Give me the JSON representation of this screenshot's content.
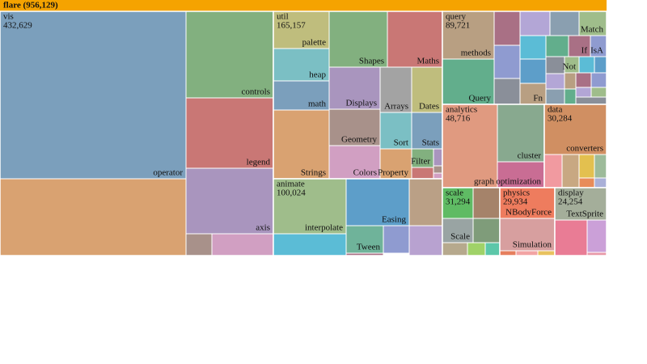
{
  "chart_data": {
    "type": "treemap",
    "title": "flare (956,129)",
    "value": 956129,
    "color": "#f5a300",
    "children": [
      {
        "name": "vis",
        "value": 432629,
        "value_label": "432,629",
        "children": [
          {
            "name": "operator",
            "value": 200900,
            "color": "#7b9fbc"
          },
          {
            "name": null,
            "value": 92200,
            "color": "#d9a271"
          },
          {
            "name": "controls",
            "value": 48800,
            "color": "#82b07f"
          },
          {
            "name": "legend",
            "value": 39700,
            "color": "#c97775"
          },
          {
            "name": "axis",
            "value": 36900,
            "color": "#a995be"
          },
          {
            "name": null,
            "value": 3600,
            "color": "#a8918a"
          },
          {
            "name": null,
            "value": 8700,
            "color": "#d19fc2"
          }
        ]
      },
      {
        "name": "util",
        "value": 165157,
        "value_label": "165,157",
        "children": [
          {
            "name": "palette",
            "value": 13400,
            "color": "#bfbd7d"
          },
          {
            "name": "heap",
            "value": 11600,
            "color": "#7bbfc4"
          },
          {
            "name": "math",
            "value": 10500,
            "color": "#7b9fbc"
          },
          {
            "name": "Strings",
            "value": 24800,
            "color": "#d9a271"
          },
          {
            "name": "Shapes",
            "value": 21000,
            "color": "#82b07f"
          },
          {
            "name": "Maths",
            "value": 19800,
            "color": "#c97775"
          },
          {
            "name": "Displays",
            "value": 13800,
            "color": "#a995be"
          },
          {
            "name": "Geometry",
            "value": 12000,
            "color": "#a8918a"
          },
          {
            "name": "Colors",
            "value": 10900,
            "color": "#d19fc2"
          },
          {
            "name": "Arrays",
            "value": 9200,
            "color": "#a3a3a3"
          },
          {
            "name": "Dates",
            "value": 9000,
            "color": "#bfbd7d"
          },
          {
            "name": "Sort",
            "value": 7400,
            "color": "#7bbfc4"
          },
          {
            "name": "Stats",
            "value": 7200,
            "color": "#7b9fbc"
          },
          {
            "name": "Property",
            "value": 6100,
            "color": "#d9a271"
          },
          {
            "name": "Filter",
            "value": 2600,
            "color": "#82b07f"
          },
          {
            "name": null,
            "value": 1000,
            "color": "#a995be"
          },
          {
            "name": null,
            "value": 1600,
            "color": "#c97775"
          },
          {
            "name": null,
            "value": 400,
            "color": "#a8918a"
          },
          {
            "name": null,
            "value": 300,
            "color": "#d19fc2"
          }
        ]
      },
      {
        "name": "animate",
        "value": 100024,
        "value_label": "100,024",
        "children": [
          {
            "name": "interpolate",
            "value": 25800,
            "color": "#9fbd8b"
          },
          {
            "name": null,
            "value": 10300,
            "color": "#5bbcd6"
          },
          {
            "name": "Easing",
            "value": 19100,
            "color": "#5d9ec9"
          },
          {
            "name": null,
            "value": 10000,
            "color": "#baa086"
          },
          {
            "name": "Tween",
            "value": 6600,
            "color": "#6fb39a"
          },
          {
            "name": null,
            "value": 4600,
            "color": "#8f9bd0"
          },
          {
            "name": null,
            "value": 6400,
            "color": "#b8a2d0"
          },
          {
            "name": null,
            "value": 600,
            "color": "#a97085"
          }
        ]
      },
      {
        "name": "query",
        "value": 89721,
        "value_label": "89,721",
        "children": [
          {
            "name": "methods",
            "value": 15900,
            "color": "#b89f82"
          },
          {
            "name": "Query",
            "value": 15100,
            "color": "#62ae8c"
          },
          {
            "name": null,
            "value": 5700,
            "color": "#a97085"
          },
          {
            "name": null,
            "value": 5500,
            "color": "#8f9bd0"
          },
          {
            "name": null,
            "value": 4300,
            "color": "#8a8f99"
          },
          {
            "name": null,
            "value": 4700,
            "color": "#b3a6d6"
          },
          {
            "name": null,
            "value": 4600,
            "color": "#8a9fb0"
          },
          {
            "name": "Match",
            "value": 4300,
            "color": "#9fbd8b"
          },
          {
            "name": null,
            "value": 3900,
            "color": "#5bbcd6"
          },
          {
            "name": null,
            "value": 3100,
            "color": "#62ae8c"
          },
          {
            "name": "If",
            "value": 3000,
            "color": "#a97085"
          },
          {
            "name": "IsA",
            "value": 2200,
            "color": "#8f9bd0"
          },
          {
            "name": null,
            "value": 4100,
            "color": "#5d9ec9"
          },
          {
            "name": "Fn",
            "value": 3500,
            "color": "#b89f82"
          },
          {
            "name": null,
            "value": 2000,
            "color": "#8a8f99"
          },
          {
            "name": "Not",
            "value": 1500,
            "color": "#9fbd8b"
          },
          {
            "name": null,
            "value": 1600,
            "color": "#5bbcd6"
          },
          {
            "name": null,
            "value": 1300,
            "color": "#5d9ec9"
          },
          {
            "name": null,
            "value": 1800,
            "color": "#b3a6d6"
          },
          {
            "name": null,
            "value": 1800,
            "color": "#8a9fb0"
          },
          {
            "name": null,
            "value": 1200,
            "color": "#b89f82"
          },
          {
            "name": null,
            "value": 1400,
            "color": "#a97085"
          },
          {
            "name": null,
            "value": 1400,
            "color": "#8f9bd0"
          },
          {
            "name": null,
            "value": 1100,
            "color": "#62ae8c"
          },
          {
            "name": null,
            "value": 1000,
            "color": "#b3a6d6"
          },
          {
            "name": null,
            "value": 1000,
            "color": "#9fbd8b"
          },
          {
            "name": null,
            "value": 1400,
            "color": "#8a8f99"
          }
        ]
      },
      {
        "name": "analytics",
        "value": 48716,
        "value_label": "48,716",
        "children": [
          {
            "name": "graph",
            "value": 29600,
            "color": "#e09a80"
          },
          {
            "name": "cluster",
            "value": 17400,
            "color": "#88a98f"
          },
          {
            "name": "optimization",
            "value": 7800,
            "color": "#c96d94"
          }
        ]
      },
      {
        "name": "data",
        "value": 30284,
        "value_label": "30,284",
        "children": [
          {
            "name": "converters",
            "value": 20100,
            "color": "#d08f62"
          },
          {
            "name": null,
            "value": 3800,
            "color": "#f19aa0"
          },
          {
            "name": null,
            "value": 3600,
            "color": "#c8a882"
          },
          {
            "name": null,
            "value": 2300,
            "color": "#e3c04f"
          },
          {
            "name": null,
            "value": 1800,
            "color": "#9dbb9a"
          },
          {
            "name": null,
            "value": 1000,
            "color": "#e88c5a"
          },
          {
            "name": null,
            "value": 800,
            "color": "#aab0d8"
          }
        ]
      },
      {
        "name": "scale",
        "value": 31294,
        "value_label": "31,294",
        "children": [
          {
            "name": null,
            "value": 6100,
            "color": "#5fbb64"
          },
          {
            "name": null,
            "value": 5300,
            "color": "#a5836a"
          },
          {
            "name": "Scale",
            "value": 4800,
            "color": "#99a4a3"
          },
          {
            "name": null,
            "value": 4200,
            "color": "#7f9c7a"
          },
          {
            "name": null,
            "value": 2100,
            "color": "#b6a98d"
          },
          {
            "name": null,
            "value": 1500,
            "color": "#a0d268"
          },
          {
            "name": null,
            "value": 1200,
            "color": "#5cc7a9"
          }
        ]
      },
      {
        "name": "physics",
        "value": 29934,
        "value_label": "29,934",
        "children": [
          {
            "name": "NBodyForce",
            "value": 10900,
            "color": "#ee7c5e"
          },
          {
            "name": "Simulation",
            "value": 11500,
            "color": "#d79f9f"
          },
          {
            "name": null,
            "value": 500,
            "color": "#e67f5e"
          },
          {
            "name": null,
            "value": 700,
            "color": "#f2a4a4"
          },
          {
            "name": null,
            "value": 500,
            "color": "#e8c25f"
          }
        ]
      },
      {
        "name": "display",
        "value": 24254,
        "value_label": "24,254",
        "children": [
          {
            "name": "TextSprite",
            "value": 10800,
            "color": "#a4ae9a"
          },
          {
            "name": null,
            "value": 7400,
            "color": "#e97c95"
          },
          {
            "name": null,
            "value": 4100,
            "color": "#cba0d8"
          },
          {
            "name": null,
            "value": 400,
            "color": "#e899a8"
          }
        ]
      }
    ]
  }
}
